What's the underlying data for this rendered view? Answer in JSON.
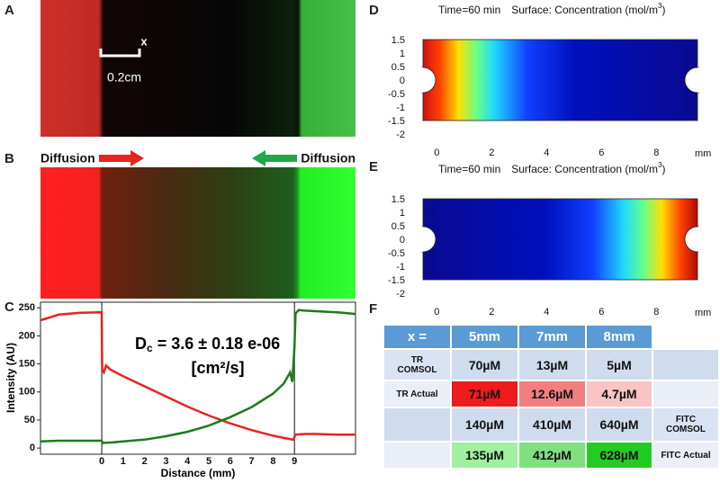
{
  "panels": {
    "labels": [
      "A",
      "B",
      "C",
      "D",
      "E",
      "F"
    ]
  },
  "image_a": {
    "x_marker": "x",
    "scale_label": "0.2cm"
  },
  "image_b": {
    "left_label": "Diffusion",
    "right_label": "Diffusion"
  },
  "chart_data": [
    {
      "type": "line",
      "ylabel": "Intensity (AU)",
      "xlabel": "Distance (mm)",
      "annotation": [
        "D",
        "c",
        " = 3.6 ± 0.18 e-06",
        "[cm²/s]"
      ],
      "xlim": [
        -2.86,
        11.85
      ],
      "ylim": [
        -11,
        260
      ],
      "xticks": [
        0,
        1,
        2,
        3,
        4,
        5,
        6,
        7,
        8,
        9
      ],
      "yticks": [
        0,
        50,
        100,
        150,
        200,
        250
      ],
      "series": [
        {
          "color": "#e8231e",
          "x": [
            -2.86,
            -2.5,
            -2,
            -1,
            0,
            0.02,
            0.1,
            0.2,
            0.4,
            1,
            2,
            3,
            4,
            5,
            6,
            7,
            8,
            8.5,
            8.95,
            9,
            9.05,
            9.5,
            10,
            11,
            11.85
          ],
          "values": [
            228,
            232,
            238,
            241,
            242,
            140,
            135,
            147,
            140,
            128,
            110,
            92,
            74,
            58,
            44,
            32,
            22,
            18,
            15,
            20,
            24,
            25,
            25,
            24,
            24
          ]
        },
        {
          "color": "#1e7a1e",
          "x": [
            -2.86,
            -2,
            -1,
            0,
            0.05,
            0.5,
            1,
            2,
            3,
            4,
            5,
            6,
            7,
            8,
            8.5,
            8.8,
            8.9,
            9,
            9.05,
            9.2,
            9.5,
            10,
            11,
            11.85
          ],
          "values": [
            12,
            13,
            13,
            13,
            9,
            10,
            12,
            15,
            21,
            29,
            40,
            55,
            73,
            97,
            115,
            135,
            118,
            180,
            240,
            246,
            245,
            244,
            242,
            239
          ]
        }
      ]
    },
    {
      "type": "surface",
      "title": [
        "Time=60 min",
        "Surface: Concentration (mol/m",
        "3",
        ")"
      ],
      "xlim": [
        -0.5,
        9.5
      ],
      "ylim": [
        -2,
        1.5
      ],
      "x_unit": "mm",
      "xticks": [
        0,
        2,
        4,
        6,
        8
      ],
      "yticks": [
        1.5,
        1,
        0.5,
        0,
        -0.5,
        -1,
        -1.5,
        -2
      ]
    },
    {
      "type": "surface",
      "title": [
        "Time=60 min",
        "Surface: Concentration (mol/m",
        "3",
        ")"
      ],
      "xlim": [
        -0.5,
        9.5
      ],
      "ylim": [
        -2,
        1.5
      ],
      "x_unit": "mm",
      "xticks": [
        0,
        2,
        4,
        6,
        8
      ],
      "yticks": [
        1.5,
        1,
        0.5,
        0,
        -0.5,
        -1,
        -1.5,
        -2
      ]
    }
  ],
  "table": {
    "header": [
      "x =",
      "5mm",
      "7mm",
      "8mm"
    ],
    "rows": [
      [
        [
          "TR",
          "COMSOL"
        ],
        "70µM",
        "13µM",
        "5µM",
        null
      ],
      [
        "TR Actual",
        "71µM",
        "12.6µM",
        "4.7µM",
        null
      ],
      [
        null,
        "140µM",
        "410µM",
        "640µM",
        [
          "FITC",
          "COMSOL"
        ]
      ],
      [
        null,
        "135µM",
        "412µM",
        "628µM",
        "FITC Actual"
      ]
    ]
  }
}
